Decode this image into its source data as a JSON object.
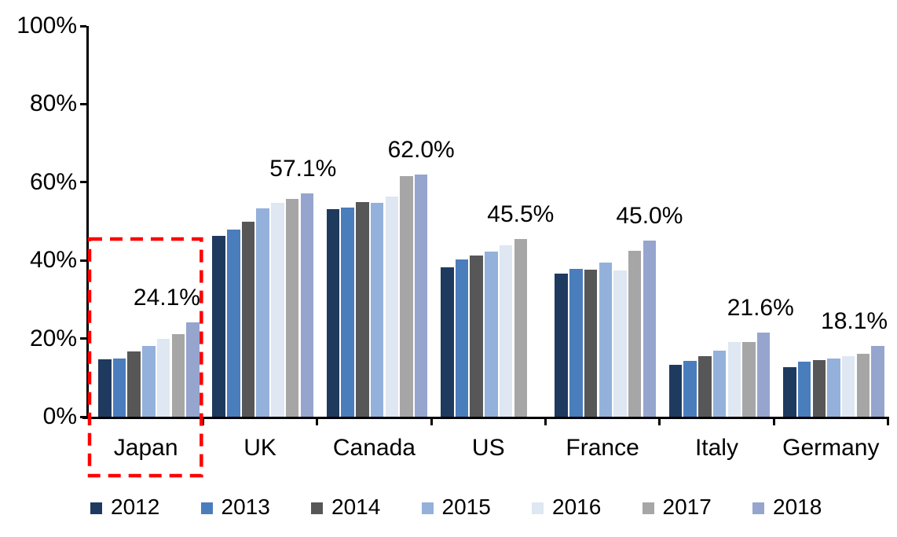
{
  "chart_data": {
    "type": "bar",
    "title": "",
    "xlabel": "",
    "ylabel": "",
    "categories": [
      "Japan",
      "UK",
      "Canada",
      "US",
      "France",
      "Italy",
      "Germany"
    ],
    "series": [
      {
        "name": "2012",
        "color": "#1f3a5f",
        "values": [
          14.7,
          46.3,
          53.2,
          38.3,
          36.7,
          13.3,
          12.7
        ]
      },
      {
        "name": "2013",
        "color": "#4a7dbc",
        "values": [
          14.9,
          47.9,
          53.6,
          40.3,
          37.8,
          14.3,
          14.1
        ]
      },
      {
        "name": "2014",
        "color": "#575757",
        "values": [
          16.6,
          50.0,
          55.0,
          41.2,
          37.7,
          15.4,
          14.5
        ]
      },
      {
        "name": "2015",
        "color": "#93b1da",
        "values": [
          18.2,
          53.4,
          54.8,
          42.3,
          39.4,
          17.0,
          14.8
        ]
      },
      {
        "name": "2016",
        "color": "#dee7f2",
        "values": [
          20.0,
          54.7,
          56.3,
          43.9,
          37.4,
          19.1,
          15.4
        ]
      },
      {
        "name": "2017",
        "color": "#a6a6a6",
        "values": [
          21.2,
          55.8,
          61.6,
          45.5,
          42.4,
          19.2,
          16.0
        ]
      },
      {
        "name": "2018",
        "color": "#96a5ce",
        "values": [
          24.1,
          57.1,
          62.0,
          null,
          45.0,
          21.6,
          18.1
        ]
      }
    ],
    "data_labels": [
      {
        "category": "Japan",
        "text": "24.1%"
      },
      {
        "category": "UK",
        "text": "57.1%"
      },
      {
        "category": "Canada",
        "text": "62.0%"
      },
      {
        "category": "US",
        "text": "45.5%"
      },
      {
        "category": "France",
        "text": "45.0%"
      },
      {
        "category": "Italy",
        "text": "21.6%"
      },
      {
        "category": "Germany",
        "text": "18.1%"
      }
    ],
    "y_axis": {
      "min": 0,
      "max": 100,
      "tick_step": 20,
      "tick_labels": [
        "0%",
        "20%",
        "40%",
        "60%",
        "80%",
        "100%"
      ]
    },
    "legend": [
      "2012",
      "2013",
      "2014",
      "2015",
      "2016",
      "2017",
      "2018"
    ],
    "legend_position": "bottom",
    "grid": false,
    "highlight": {
      "category": "Japan",
      "color": "#ff0000",
      "style": "dashed-rectangle"
    },
    "axis_color": "#000000",
    "text_color": "#000000"
  }
}
